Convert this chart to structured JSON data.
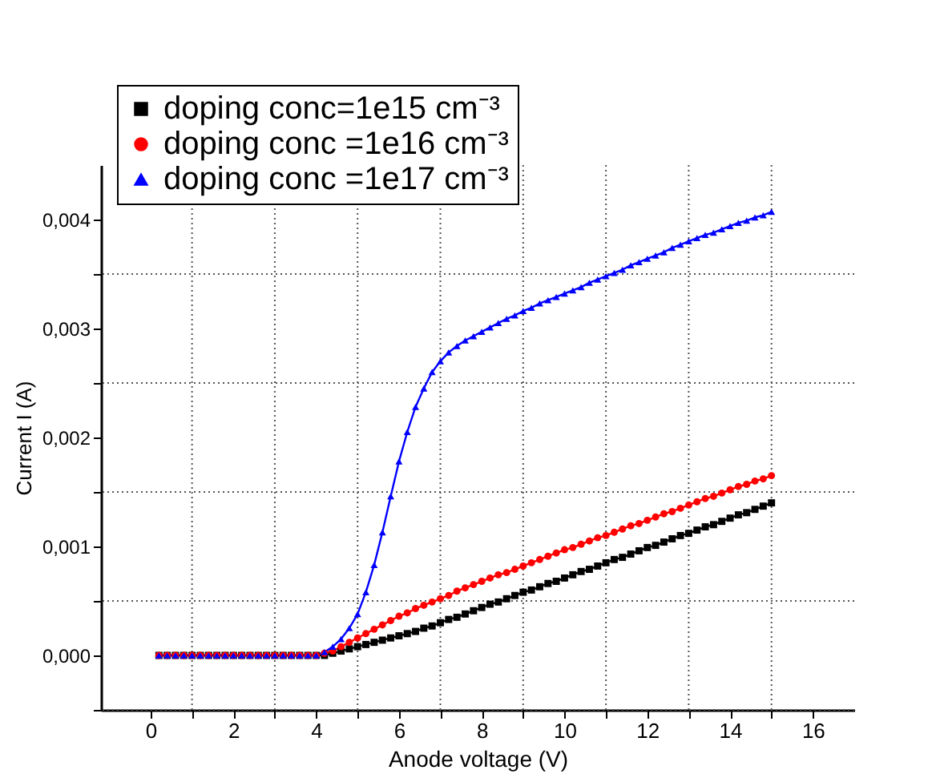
{
  "chart_data": {
    "type": "line",
    "xlabel": "Anode voltage (V)",
    "ylabel": "Current I (A)",
    "x": [
      0.2,
      0.4,
      0.6,
      0.8,
      1.0,
      1.2,
      1.4,
      1.6,
      1.8,
      2.0,
      2.2,
      2.4,
      2.6,
      2.8,
      3.0,
      3.2,
      3.4,
      3.6,
      3.8,
      4.0,
      4.2,
      4.4,
      4.6,
      4.8,
      5.0,
      5.2,
      5.4,
      5.6,
      5.8,
      6.0,
      6.2,
      6.4,
      6.6,
      6.8,
      7.0,
      7.2,
      7.4,
      7.6,
      7.8,
      8.0,
      8.2,
      8.4,
      8.6,
      8.8,
      9.0,
      9.2,
      9.4,
      9.6,
      9.8,
      10.0,
      10.2,
      10.4,
      10.6,
      10.8,
      11.0,
      11.2,
      11.4,
      11.6,
      11.8,
      12.0,
      12.2,
      12.4,
      12.6,
      12.8,
      13.0,
      13.2,
      13.4,
      13.6,
      13.8,
      14.0,
      14.2,
      14.4,
      14.6,
      14.8,
      15.0
    ],
    "series": [
      {
        "name": "doping conc=1e15 cm⁻³",
        "color": "#000000",
        "marker": "square",
        "values": [
          0,
          0,
          0,
          0,
          0,
          0,
          0,
          0,
          0,
          0,
          0,
          0,
          0,
          0,
          0,
          0,
          0,
          0,
          0,
          0,
          0,
          2e-05,
          4e-05,
          6e-05,
          8e-05,
          0.0001,
          0.00012,
          0.00014,
          0.00016,
          0.00018,
          0.0002,
          0.00022,
          0.00025,
          0.00027,
          0.0003,
          0.00033,
          0.00035,
          0.00038,
          0.00041,
          0.00044,
          0.00047,
          0.00049,
          0.00052,
          0.00055,
          0.00058,
          0.0006,
          0.00063,
          0.00066,
          0.00068,
          0.00071,
          0.00074,
          0.00077,
          0.00079,
          0.00082,
          0.00085,
          0.00088,
          0.0009,
          0.00093,
          0.00096,
          0.00099,
          0.00101,
          0.00104,
          0.00107,
          0.0011,
          0.00112,
          0.00115,
          0.00118,
          0.0012,
          0.00123,
          0.00126,
          0.00129,
          0.00131,
          0.00134,
          0.00137,
          0.0014
        ]
      },
      {
        "name": "doping conc =1e16 cm⁻³",
        "color": "#ff0000",
        "marker": "circle",
        "values": [
          0,
          0,
          0,
          0,
          0,
          0,
          0,
          0,
          0,
          0,
          0,
          0,
          0,
          0,
          0,
          0,
          0,
          0,
          0,
          0,
          2e-05,
          4e-05,
          8e-05,
          0.00012,
          0.00016,
          0.0002,
          0.00024,
          0.00028,
          0.00032,
          0.00036,
          0.00039,
          0.00043,
          0.00046,
          0.00049,
          0.00052,
          0.00055,
          0.00059,
          0.00062,
          0.00065,
          0.00068,
          0.00071,
          0.00074,
          0.00076,
          0.00079,
          0.00082,
          0.00085,
          0.00088,
          0.00091,
          0.00094,
          0.00097,
          0.00099,
          0.00102,
          0.00105,
          0.00108,
          0.0011,
          0.00113,
          0.00116,
          0.00119,
          0.00121,
          0.00124,
          0.00127,
          0.0013,
          0.00132,
          0.00135,
          0.00138,
          0.00141,
          0.00144,
          0.00146,
          0.00149,
          0.00152,
          0.00155,
          0.00157,
          0.0016,
          0.00162,
          0.00165
        ]
      },
      {
        "name": "doping conc =1e17 cm⁻³",
        "color": "#0000ff",
        "marker": "triangle",
        "values": [
          0,
          0,
          0,
          0,
          0,
          0,
          0,
          0,
          0,
          0,
          0,
          0,
          0,
          0,
          0,
          0,
          0,
          0,
          0,
          0,
          3e-05,
          8e-05,
          0.00015,
          0.00025,
          0.00038,
          0.00058,
          0.00083,
          0.00113,
          0.00146,
          0.00178,
          0.00205,
          0.00228,
          0.00245,
          0.0026,
          0.0027,
          0.00278,
          0.00284,
          0.00289,
          0.00293,
          0.00297,
          0.00301,
          0.00305,
          0.00309,
          0.00312,
          0.00316,
          0.00319,
          0.00323,
          0.00326,
          0.00329,
          0.00332,
          0.00335,
          0.00338,
          0.00342,
          0.00345,
          0.00348,
          0.00351,
          0.00354,
          0.00358,
          0.00361,
          0.00364,
          0.00367,
          0.0037,
          0.00374,
          0.00377,
          0.0038,
          0.00383,
          0.00386,
          0.00388,
          0.00391,
          0.00394,
          0.00397,
          0.00399,
          0.00402,
          0.00404,
          0.00407
        ]
      }
    ],
    "xlim": [
      -1.2,
      17
    ],
    "xticks": [
      0,
      {
        "value": 1,
        "label": null
      },
      2,
      {
        "value": 3,
        "label": null
      },
      4,
      {
        "value": 5,
        "label": null
      },
      6,
      {
        "value": 7,
        "label": null
      },
      8,
      {
        "value": 9,
        "label": null
      },
      10,
      {
        "value": 11,
        "label": null
      },
      12,
      {
        "value": 13,
        "label": null
      },
      14,
      {
        "value": 15,
        "label": null
      },
      16
    ],
    "ylim": [
      -0.0005,
      0.0045
    ],
    "yticks": [
      {
        "value": -0.0005,
        "label": null
      },
      {
        "value": 0,
        "label": "0,000"
      },
      {
        "value": 0.0005,
        "label": null
      },
      {
        "value": 0.001,
        "label": "0,001"
      },
      {
        "value": 0.0015,
        "label": null
      },
      {
        "value": 0.002,
        "label": "0,002"
      },
      {
        "value": 0.0025,
        "label": null
      },
      {
        "value": 0.003,
        "label": "0,003"
      },
      {
        "value": 0.0035,
        "label": null
      },
      {
        "value": 0.004,
        "label": "0,004"
      }
    ],
    "grid": true,
    "legend": "top left",
    "line_style": "solid"
  }
}
